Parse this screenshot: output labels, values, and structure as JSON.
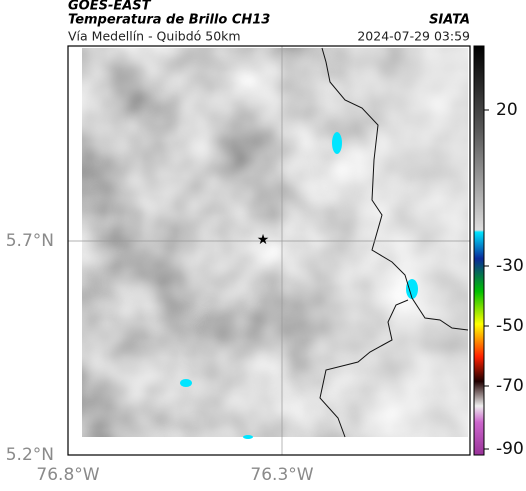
{
  "header": {
    "title": "GOES-EAST",
    "subtitle": "Temperatura de Brillo CH13",
    "source": "SIATA",
    "route": "Vía Medellín - Quibdó 50km",
    "timestamp": "2024-07-29 03:59"
  },
  "map": {
    "lat_ticks": [
      "5.7°N",
      "5.2°N"
    ],
    "lon_ticks": [
      "76.8°W",
      "76.3°W"
    ]
  },
  "colorbar": {
    "ticks": [
      20,
      -30,
      -50,
      -70,
      -90
    ]
  }
}
